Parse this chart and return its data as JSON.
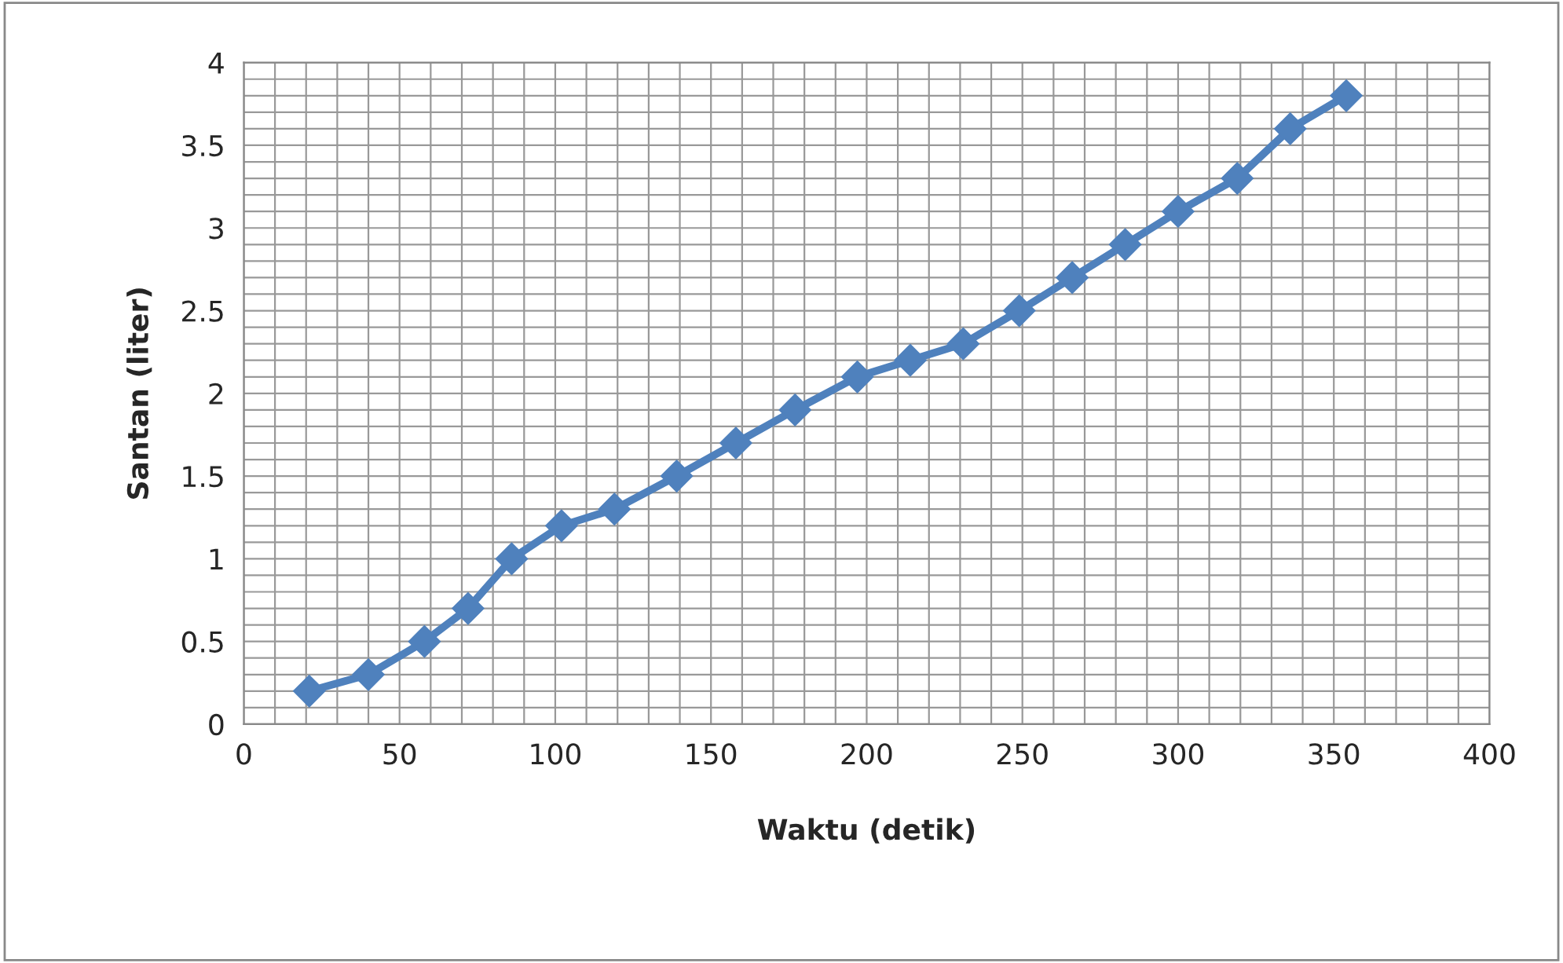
{
  "chart_data": {
    "type": "line",
    "xlabel": "Waktu (detik)",
    "ylabel": "Santan (liter)",
    "x": [
      21,
      40,
      58,
      72,
      86,
      102,
      119,
      139,
      158,
      177,
      197,
      214,
      231,
      249,
      266,
      283,
      300,
      319,
      336,
      354
    ],
    "series": [
      {
        "color": "#4f81bd",
        "values": [
          0.2,
          0.3,
          0.5,
          0.7,
          1.0,
          1.2,
          1.3,
          1.5,
          1.7,
          1.9,
          2.1,
          2.2,
          2.3,
          2.5,
          2.7,
          2.9,
          3.1,
          3.3,
          3.6,
          3.8
        ]
      }
    ],
    "xlim": [
      0,
      400
    ],
    "xticks": [
      0,
      50,
      100,
      150,
      200,
      250,
      300,
      350,
      400
    ],
    "ylim": [
      0,
      4
    ],
    "yticks": [
      0,
      0.5,
      1,
      1.5,
      2,
      2.5,
      3,
      3.5,
      4
    ],
    "grid": true,
    "marker": "diamond",
    "line_style": "solid"
  }
}
